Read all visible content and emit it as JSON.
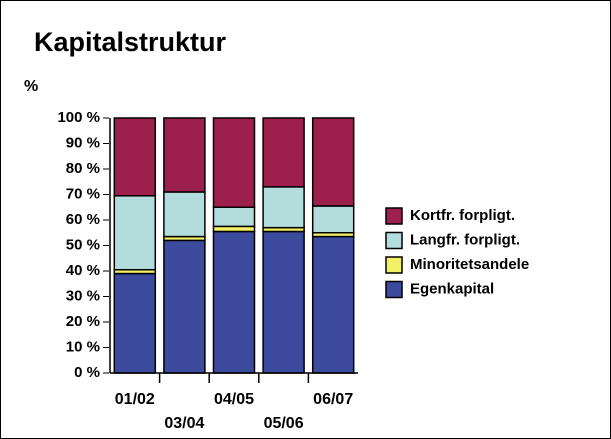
{
  "chart_data": {
    "type": "stacked_bar",
    "title": "Kapitalstruktur",
    "y_axis_label": "%",
    "categories": [
      "01/02",
      "03/04",
      "04/05",
      "05/06",
      "06/07"
    ],
    "series": [
      {
        "name": "Egenkapital",
        "color": "#3c4b9e",
        "values": [
          39,
          52,
          55.5,
          55.5,
          53.5
        ]
      },
      {
        "name": "Minoritetsandele",
        "color": "#f2f064",
        "values": [
          1.5,
          1.5,
          2,
          1.5,
          1.5
        ]
      },
      {
        "name": "Langfr. forpligt.",
        "color": "#b3dcdc",
        "values": [
          29,
          17.5,
          7.5,
          16,
          10.5
        ]
      },
      {
        "name": "Kortfr. forpligt.",
        "color": "#9c1f4c",
        "values": [
          30.5,
          29,
          35,
          27,
          34.5
        ]
      }
    ],
    "ylim": [
      0,
      100
    ],
    "yticks": [
      {
        "value": 0,
        "label": "0 %"
      },
      {
        "value": 10,
        "label": "10 %"
      },
      {
        "value": 20,
        "label": "20 %"
      },
      {
        "value": 30,
        "label": "30 %"
      },
      {
        "value": 40,
        "label": "40 %"
      },
      {
        "value": 50,
        "label": "50 %"
      },
      {
        "value": 60,
        "label": "60 %"
      },
      {
        "value": 70,
        "label": "70 %"
      },
      {
        "value": 80,
        "label": "80 %"
      },
      {
        "value": 90,
        "label": "90 %"
      },
      {
        "value": 100,
        "label": "100 %"
      }
    ],
    "legend_position": "right"
  }
}
